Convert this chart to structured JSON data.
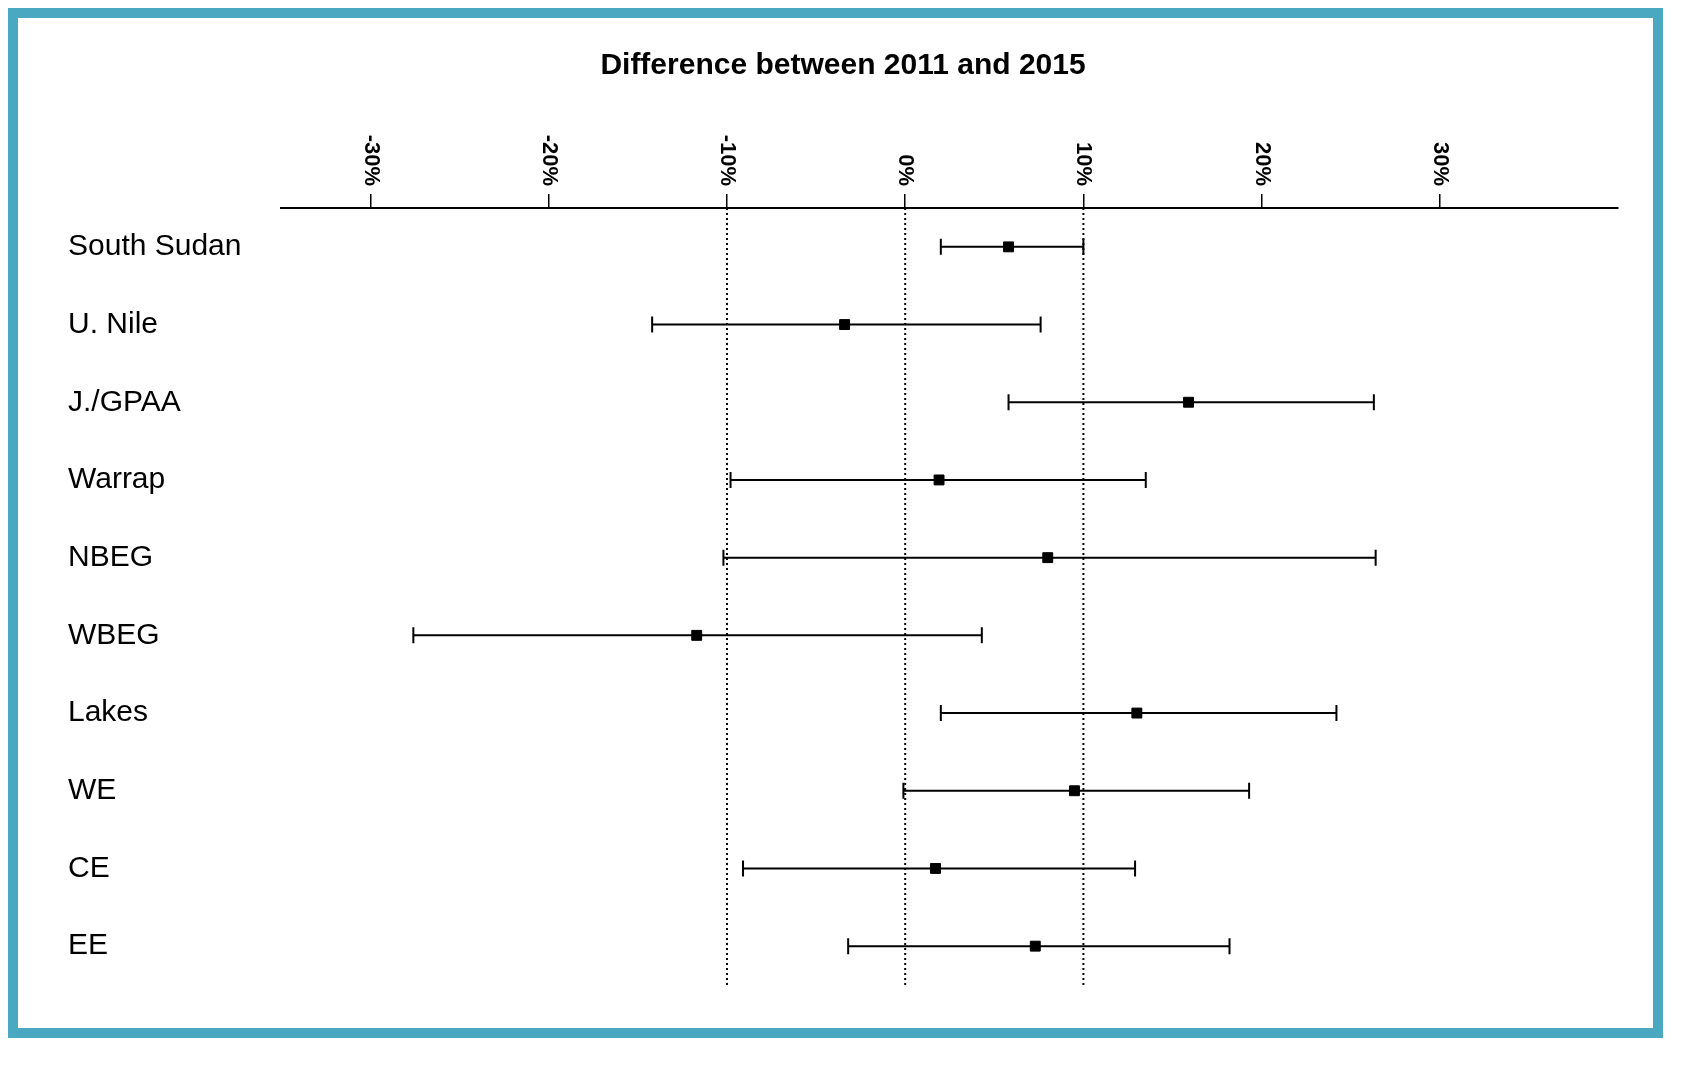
{
  "chart_data": {
    "type": "scatter",
    "title": "Difference between 2011 and 2015",
    "orientation": "horizontal",
    "categories": [
      "South Sudan",
      "U. Nile",
      "J./GPAA",
      "Warrap",
      "NBEG",
      "WBEG",
      "Lakes",
      "WE",
      "CE",
      "EE"
    ],
    "values": [
      5.8,
      -3.4,
      15.9,
      1.9,
      8.0,
      -11.7,
      13.0,
      9.5,
      1.7,
      7.3
    ],
    "errors": [
      [
        2.0,
        10.0
      ],
      [
        -14.2,
        7.6
      ],
      [
        5.8,
        26.3
      ],
      [
        -9.8,
        13.5
      ],
      [
        -10.2,
        26.4
      ],
      [
        -27.6,
        4.3
      ],
      [
        2.0,
        24.2
      ],
      [
        -0.1,
        19.3
      ],
      [
        -9.1,
        12.9
      ],
      [
        -3.2,
        18.2
      ]
    ],
    "color": "#000000",
    "marker": "square",
    "xlim": [
      -35,
      40
    ],
    "xticks": [
      {
        "value": -30,
        "label": "-30%"
      },
      {
        "value": -20,
        "label": "-20%"
      },
      {
        "value": -10,
        "label": "-10%"
      },
      {
        "value": 0,
        "label": "0%"
      },
      {
        "value": 10,
        "label": "10%"
      },
      {
        "value": 20,
        "label": "20%"
      },
      {
        "value": 30,
        "label": "30%"
      }
    ],
    "ref_lines": [
      {
        "axis": "x",
        "value": -10,
        "line_style": "dotted"
      },
      {
        "axis": "x",
        "value": 0,
        "line_style": "dotted"
      },
      {
        "axis": "x",
        "value": 10,
        "line_style": "dotted"
      }
    ],
    "grid": false,
    "legend": false
  }
}
